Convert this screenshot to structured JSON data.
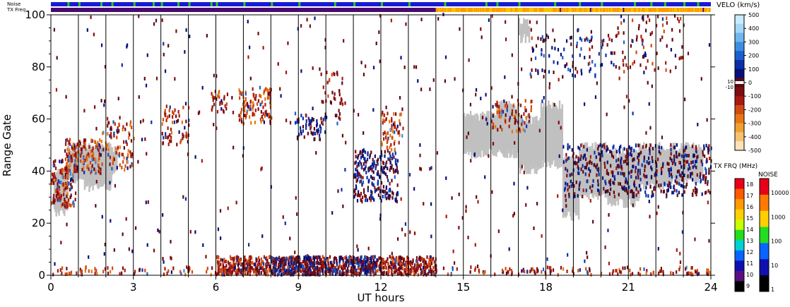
{
  "chart_data": {
    "type": "scatter",
    "plot": "range-time velocity plot",
    "xlabel": "UT hours",
    "ylabel": "Range Gate",
    "xlim": [
      0,
      24
    ],
    "ylim": [
      0,
      100
    ],
    "x_ticks": [
      0,
      3,
      6,
      9,
      12,
      15,
      18,
      21,
      24
    ],
    "x_tick_labels": [
      "0",
      "3",
      "6",
      "9",
      "12",
      "15",
      "18",
      "21",
      "24"
    ],
    "y_ticks": [
      0,
      20,
      40,
      60,
      80,
      100
    ],
    "y_tick_labels": [
      "0",
      "20",
      "40",
      "60",
      "80",
      "100"
    ],
    "scan_boundaries_ut": [
      1,
      2,
      3,
      4,
      5,
      6,
      7,
      8,
      9,
      10,
      11,
      12,
      13,
      14,
      15,
      16,
      17,
      18,
      19,
      20,
      21,
      22,
      23
    ],
    "top_strips": {
      "noise_label": "Noise",
      "txfreq_label": "TX Freq",
      "noise_base_color": "#1a1ad6",
      "noise_spike_color": "#22cc22",
      "noise_spikes_ut": [
        0.6,
        1.0,
        1.8,
        2.2,
        3.0,
        3.7,
        4.0,
        4.6,
        5.0,
        5.8,
        6.0,
        7.0,
        8.0,
        9.0,
        10.3,
        11.0,
        12.0,
        13.0,
        14.3,
        15.8,
        16.2,
        17.0,
        18.3,
        19.2,
        20.0,
        21.2,
        21.8,
        22.3,
        23.0,
        23.5
      ],
      "txfreq_colors": [
        "#4a0a6e",
        "#f5c400"
      ],
      "txfreq_switch_ut": 14.0,
      "txfreq_dips_ut": [
        18.5,
        18.55,
        19.6,
        20.8,
        21.2,
        22.1,
        23.2,
        23.7
      ]
    },
    "velocity_scale": {
      "title": "VELO (km/s)",
      "tick_labels": [
        "500",
        "400",
        "300",
        "200",
        "100",
        "0",
        "-100",
        "-200",
        "-300",
        "-400",
        "-500"
      ],
      "threshold_labels": [
        "10",
        "-10"
      ],
      "colors_top_to_bottom": [
        "#c8ecff",
        "#a3d7f5",
        "#6fb6ee",
        "#3b8fe2",
        "#1a5fd0",
        "#0b2fa8",
        "#07107a",
        "#5a0a14",
        "#7e0c10",
        "#a81a10",
        "#d24a10",
        "#e67616",
        "#f0a030",
        "#f6c272",
        "#fbe2b8"
      ]
    },
    "txfreq_scale": {
      "title": "TX FRQ (MHz)",
      "tick_labels": [
        "18",
        "17",
        "16",
        "15",
        "14",
        "13",
        "12",
        "11",
        "10",
        "9"
      ],
      "colors_top_to_bottom": [
        "#e8001a",
        "#ff5a00",
        "#ff9a00",
        "#ffd000",
        "#c8ff00",
        "#22dd22",
        "#00d2d2",
        "#0a64ff",
        "#1010b0",
        "#5a1080",
        "#000000"
      ]
    },
    "noise_scale": {
      "title": "NOISE",
      "tick_labels": [
        "10000",
        "1000",
        "100",
        "10",
        "1"
      ],
      "colors_top_to_bottom": [
        "#e8001a",
        "#ff7a00",
        "#ffd000",
        "#22dd22",
        "#0a64ff",
        "#1010b0",
        "#000000"
      ]
    },
    "ground_scatter": {
      "color": "#c0c0c0",
      "regions": [
        {
          "ut": [
            0.1,
            0.6
          ],
          "gate": [
            23,
            40
          ]
        },
        {
          "ut": [
            0.6,
            1.2
          ],
          "gate": [
            36,
            50
          ]
        },
        {
          "ut": [
            1.2,
            2.2
          ],
          "gate": [
            33,
            50
          ]
        },
        {
          "ut": [
            2.0,
            2.4
          ],
          "gate": [
            38,
            50
          ]
        },
        {
          "ut": [
            15.0,
            16.2
          ],
          "gate": [
            46,
            62
          ]
        },
        {
          "ut": [
            16.2,
            17.0
          ],
          "gate": [
            46,
            66
          ]
        },
        {
          "ut": [
            17.0,
            17.8
          ],
          "gate": [
            40,
            60
          ]
        },
        {
          "ut": [
            17.8,
            18.6
          ],
          "gate": [
            42,
            66
          ]
        },
        {
          "ut": [
            18.6,
            19.2
          ],
          "gate": [
            22,
            45
          ]
        },
        {
          "ut": [
            19.2,
            20.2
          ],
          "gate": [
            30,
            50
          ]
        },
        {
          "ut": [
            20.2,
            21.4
          ],
          "gate": [
            27,
            48
          ]
        },
        {
          "ut": [
            21.4,
            22.6
          ],
          "gate": [
            34,
            50
          ]
        },
        {
          "ut": [
            22.6,
            23.7
          ],
          "gate": [
            36,
            50
          ]
        },
        {
          "ut": [
            17.0,
            17.4
          ],
          "gate": [
            90,
            98
          ]
        }
      ]
    },
    "echo_clusters": [
      {
        "ut": [
          0.0,
          0.9
        ],
        "gate": [
          26,
          44
        ],
        "velocity_kms": -150,
        "n": 140
      },
      {
        "ut": [
          0.5,
          1.8
        ],
        "gate": [
          38,
          52
        ],
        "velocity_kms": -180,
        "n": 140
      },
      {
        "ut": [
          1.8,
          3.0
        ],
        "gate": [
          40,
          60
        ],
        "velocity_kms": -200,
        "n": 90
      },
      {
        "ut": [
          4.0,
          5.0
        ],
        "gate": [
          50,
          65
        ],
        "velocity_kms": -150,
        "n": 60
      },
      {
        "ut": [
          5.8,
          6.4
        ],
        "gate": [
          60,
          72
        ],
        "velocity_kms": -150,
        "n": 30
      },
      {
        "ut": [
          6.8,
          8.0
        ],
        "gate": [
          58,
          72
        ],
        "velocity_kms": -180,
        "n": 110
      },
      {
        "ut": [
          8.8,
          10.0
        ],
        "gate": [
          52,
          62
        ],
        "velocity_kms": 80,
        "n": 60
      },
      {
        "ut": [
          9.8,
          10.6
        ],
        "gate": [
          58,
          78
        ],
        "velocity_kms": -100,
        "n": 40
      },
      {
        "ut": [
          11.0,
          12.6
        ],
        "gate": [
          28,
          48
        ],
        "velocity_kms": 60,
        "n": 240
      },
      {
        "ut": [
          12.0,
          12.8
        ],
        "gate": [
          48,
          62
        ],
        "velocity_kms": -200,
        "n": 60
      },
      {
        "ut": [
          16.0,
          17.5
        ],
        "gate": [
          55,
          67
        ],
        "velocity_kms": -200,
        "n": 80
      },
      {
        "ut": [
          17.4,
          20.5
        ],
        "gate": [
          76,
          92
        ],
        "velocity_kms": 100,
        "n": 90
      },
      {
        "ut": [
          20.5,
          23.0
        ],
        "gate": [
          78,
          100
        ],
        "velocity_kms": -100,
        "n": 80
      },
      {
        "ut": [
          18.6,
          24.0
        ],
        "gate": [
          30,
          50
        ],
        "velocity_kms": 50,
        "n": 480
      },
      {
        "ut": [
          0.0,
          24.0
        ],
        "gate": [
          0,
          100
        ],
        "velocity_kms": 0,
        "n": 420
      }
    ],
    "near_range_clutter": [
      {
        "ut": [
          0.0,
          24.0
        ],
        "gate": [
          0,
          3
        ],
        "velocity_kms": -150,
        "n": 280
      },
      {
        "ut": [
          6.0,
          14.0
        ],
        "gate": [
          0,
          7
        ],
        "velocity_kms": -120,
        "n": 900
      },
      {
        "ut": [
          8.0,
          12.0
        ],
        "gate": [
          0,
          7
        ],
        "velocity_kms": 80,
        "n": 260
      }
    ]
  }
}
